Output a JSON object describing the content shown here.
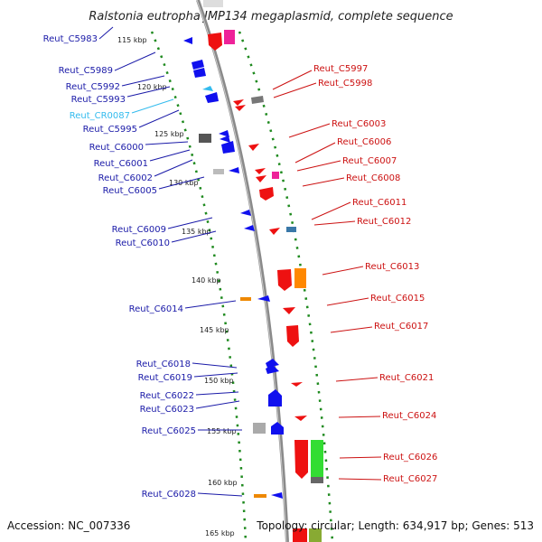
{
  "title": "Ralstonia eutropha JMP134 megaplasmid, complete sequence",
  "accession": "Accession: NC_007336",
  "summary": "Topology: circular; Length: 634,917 bp; Genes: 513",
  "ticks": [
    "115 kbp",
    "120 kbp",
    "125 kbp",
    "130 kbp",
    "135 kbp",
    "140 kbp",
    "145 kbp",
    "150 kbp",
    "155 kbp",
    "160 kbp",
    "165 kbp"
  ],
  "left_labels": [
    {
      "text": "Reut_C5983",
      "color": "#1a1aa8"
    },
    {
      "text": "Reut_C5989",
      "color": "#1a1aa8"
    },
    {
      "text": "Reut_C5992",
      "color": "#1a1aa8"
    },
    {
      "text": "Reut_C5993",
      "color": "#1a1aa8"
    },
    {
      "text": "Reut_CR0087",
      "color": "#33bbee"
    },
    {
      "text": "Reut_C5995",
      "color": "#1a1aa8"
    },
    {
      "text": "Reut_C6000",
      "color": "#1a1aa8"
    },
    {
      "text": "Reut_C6001",
      "color": "#1a1aa8"
    },
    {
      "text": "Reut_C6002",
      "color": "#1a1aa8"
    },
    {
      "text": "Reut_C6005",
      "color": "#1a1aa8"
    },
    {
      "text": "Reut_C6009",
      "color": "#1a1aa8"
    },
    {
      "text": "Reut_C6010",
      "color": "#1a1aa8"
    },
    {
      "text": "Reut_C6014",
      "color": "#1a1aa8"
    },
    {
      "text": "Reut_C6018",
      "color": "#1a1aa8"
    },
    {
      "text": "Reut_C6019",
      "color": "#1a1aa8"
    },
    {
      "text": "Reut_C6022",
      "color": "#1a1aa8"
    },
    {
      "text": "Reut_C6023",
      "color": "#1a1aa8"
    },
    {
      "text": "Reut_C6025",
      "color": "#1a1aa8"
    },
    {
      "text": "Reut_C6028",
      "color": "#1a1aa8"
    }
  ],
  "right_labels": [
    {
      "text": "Reut_C5997",
      "color": "#cc1111"
    },
    {
      "text": "Reut_C5998",
      "color": "#cc1111"
    },
    {
      "text": "Reut_C6003",
      "color": "#cc1111"
    },
    {
      "text": "Reut_C6006",
      "color": "#cc1111"
    },
    {
      "text": "Reut_C6007",
      "color": "#cc1111"
    },
    {
      "text": "Reut_C6008",
      "color": "#cc1111"
    },
    {
      "text": "Reut_C6011",
      "color": "#cc1111"
    },
    {
      "text": "Reut_C6012",
      "color": "#cc1111"
    },
    {
      "text": "Reut_C6013",
      "color": "#cc1111"
    },
    {
      "text": "Reut_C6015",
      "color": "#cc1111"
    },
    {
      "text": "Reut_C6017",
      "color": "#cc1111"
    },
    {
      "text": "Reut_C6021",
      "color": "#cc1111"
    },
    {
      "text": "Reut_C6024",
      "color": "#cc1111"
    },
    {
      "text": "Reut_C6026",
      "color": "#cc1111"
    },
    {
      "text": "Reut_C6027",
      "color": "#cc1111"
    }
  ]
}
